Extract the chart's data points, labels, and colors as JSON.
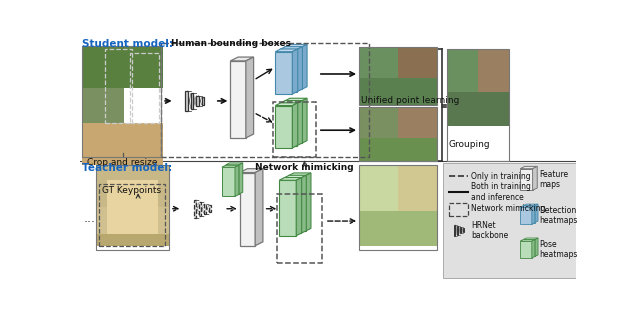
{
  "bg_color": "#ffffff",
  "student_label": "Student model:",
  "teacher_label": "Teacher model:",
  "blue_color": "#1565c0",
  "bbox_label": "Human bounding boxes",
  "crop_label": "Crop and resize",
  "mimicking_label": "Network mimicking",
  "upl_label": "Unified point learning",
  "grouping_label": "Grouping",
  "gt_label": "GT Keypoints",
  "hrnet_label": "HRNet\nbackbone",
  "feature_label": "Feature\nmaps",
  "detection_label": "Detection\nheatmaps",
  "pose_label": "Pose\nheatmaps",
  "only_train_label": "Only in training",
  "both_label": "Both in training\nand inference",
  "mimick_legend": "Network mimicking",
  "legend_bg": "#e0e0e0",
  "divider_color": "#333333"
}
